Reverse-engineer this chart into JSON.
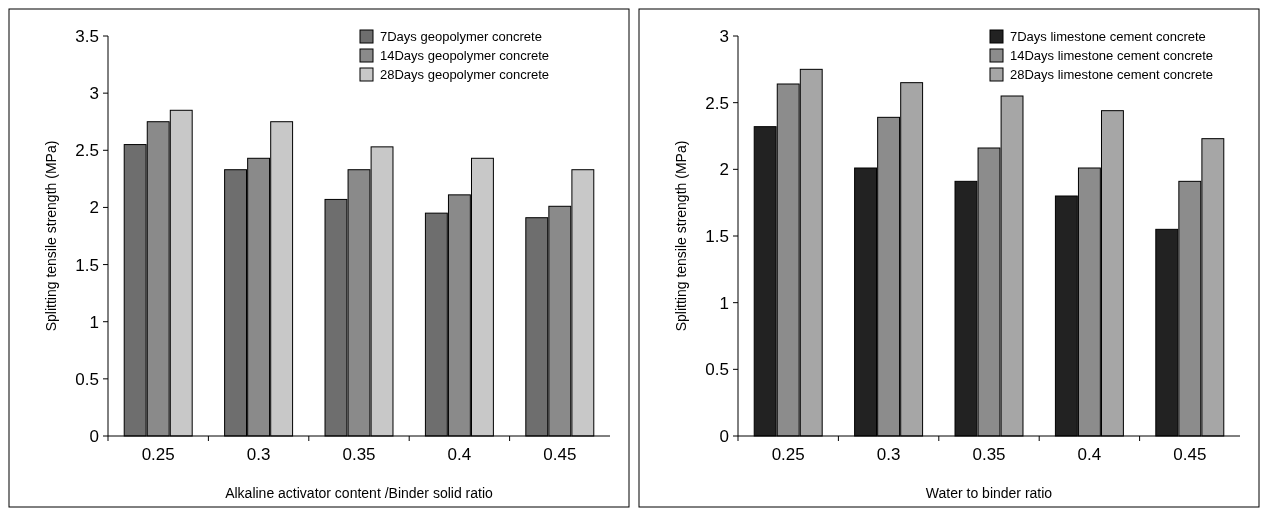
{
  "chart_data": [
    {
      "type": "bar",
      "categories": [
        "0.25",
        "0.3",
        "0.35",
        "0.4",
        "0.45"
      ],
      "xlabel": "Alkaline activator content /Binder solid ratio",
      "ylabel": "Splitting tensile strength (MPa)",
      "ylim": [
        0,
        3.5
      ],
      "yticks": [
        0,
        0.5,
        1,
        1.5,
        2,
        2.5,
        3,
        3.5
      ],
      "legend": "top right",
      "series": [
        {
          "name": "7Days geopolymer concrete",
          "color": "#6e6e6e",
          "values": [
            2.55,
            2.33,
            2.07,
            1.95,
            1.91
          ]
        },
        {
          "name": "14Days geopolymer concrete",
          "color": "#8a8a8a",
          "values": [
            2.75,
            2.43,
            2.33,
            2.11,
            2.01
          ]
        },
        {
          "name": "28Days geopolymer concrete",
          "color": "#c8c8c8",
          "values": [
            2.85,
            2.75,
            2.53,
            2.43,
            2.33
          ]
        }
      ]
    },
    {
      "type": "bar",
      "categories": [
        "0.25",
        "0.3",
        "0.35",
        "0.4",
        "0.45"
      ],
      "xlabel": "Water to binder ratio",
      "ylabel": "Splitting tensile strength (MPa)",
      "ylim": [
        0,
        3
      ],
      "yticks": [
        0,
        0.5,
        1,
        1.5,
        2,
        2.5,
        3
      ],
      "legend": "top right",
      "series": [
        {
          "name": "7Days limestone cement concrete",
          "color": "#222222",
          "values": [
            2.32,
            2.01,
            1.91,
            1.8,
            1.55
          ]
        },
        {
          "name": "14Days limestone cement concrete",
          "color": "#8c8c8c",
          "values": [
            2.64,
            2.39,
            2.16,
            2.01,
            1.91
          ]
        },
        {
          "name": "28Days limestone cement concrete",
          "color": "#a6a6a6",
          "values": [
            2.75,
            2.65,
            2.55,
            2.44,
            2.23
          ]
        }
      ]
    }
  ]
}
